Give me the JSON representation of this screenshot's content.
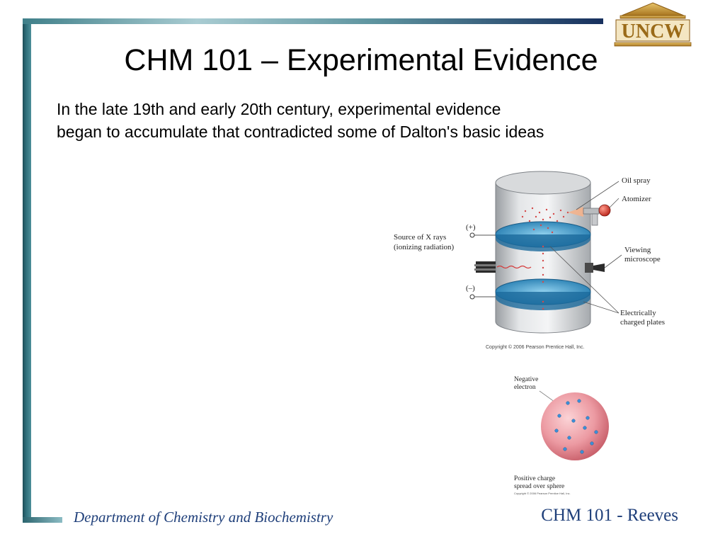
{
  "slide": {
    "title": "CHM 101 – Experimental Evidence",
    "body_lines": [
      "In the late 19th and early 20th century, experimental evidence",
      "began to accumulate that contradicted some of Dalton's basic ideas"
    ]
  },
  "logo": {
    "text": "UNCW",
    "icon": "building-columns-icon"
  },
  "millikan_figure": {
    "labels": {
      "oil_spray": "Oil spray",
      "atomizer": "Atomizer",
      "plus": "(+)",
      "minus": "(–)",
      "xray_line1": "Source of X rays",
      "xray_line2": "(ionizing radiation)",
      "viewing_line1": "Viewing",
      "viewing_line2": "microscope",
      "plates_line1": "Electrically",
      "plates_line2": "charged plates"
    },
    "copyright": "Copyright © 2006 Pearson Prentice Hall, Inc."
  },
  "plum_pudding_figure": {
    "labels": {
      "electron_line1": "Negative",
      "electron_line2": "electron",
      "charge_line1": "Positive charge",
      "charge_line2": "spread over sphere"
    },
    "copyright": "Copyright © 2006 Pearson Prentice Hall, Inc."
  },
  "footer": {
    "department": "Department of Chemistry and Biochemistry",
    "course": "CHM 101 - Reeves"
  },
  "colors": {
    "frame_teal": "#2f6f7b",
    "frame_navy": "#17305e",
    "footer_text": "#1f3f7a",
    "logo_gold": "#b8862e",
    "plate_blue": "#2f8fc4",
    "sphere_pink": "#e98a94"
  }
}
